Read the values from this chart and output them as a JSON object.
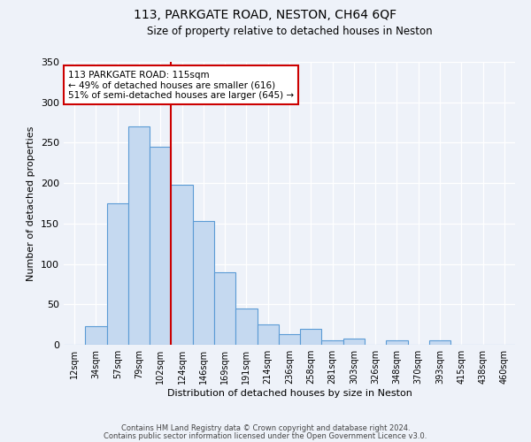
{
  "title": "113, PARKGATE ROAD, NESTON, CH64 6QF",
  "subtitle": "Size of property relative to detached houses in Neston",
  "xlabel": "Distribution of detached houses by size in Neston",
  "ylabel": "Number of detached properties",
  "bar_labels": [
    "12sqm",
    "34sqm",
    "57sqm",
    "79sqm",
    "102sqm",
    "124sqm",
    "146sqm",
    "169sqm",
    "191sqm",
    "214sqm",
    "236sqm",
    "258sqm",
    "281sqm",
    "303sqm",
    "326sqm",
    "348sqm",
    "370sqm",
    "393sqm",
    "415sqm",
    "438sqm",
    "460sqm"
  ],
  "bar_values": [
    0,
    23,
    175,
    270,
    245,
    198,
    153,
    90,
    45,
    25,
    13,
    20,
    6,
    8,
    0,
    5,
    0,
    5,
    0,
    0,
    0
  ],
  "bar_color": "#c5d9f0",
  "bar_edge_color": "#5b9bd5",
  "vline_color": "#cc0000",
  "vline_x_index": 4.5,
  "annotation_title": "113 PARKGATE ROAD: 115sqm",
  "annotation_line1": "← 49% of detached houses are smaller (616)",
  "annotation_line2": "51% of semi-detached houses are larger (645) →",
  "annotation_box_color": "#ffffff",
  "annotation_box_edge": "#cc0000",
  "ylim": [
    0,
    350
  ],
  "yticks": [
    0,
    50,
    100,
    150,
    200,
    250,
    300,
    350
  ],
  "footer1": "Contains HM Land Registry data © Crown copyright and database right 2024.",
  "footer2": "Contains public sector information licensed under the Open Government Licence v3.0.",
  "bg_color": "#eef2f9",
  "plot_bg_color": "#eef2f9",
  "title_fontsize": 10,
  "subtitle_fontsize": 8.5,
  "xlabel_fontsize": 8,
  "ylabel_fontsize": 8,
  "tick_fontsize": 7,
  "footer_fontsize": 6
}
